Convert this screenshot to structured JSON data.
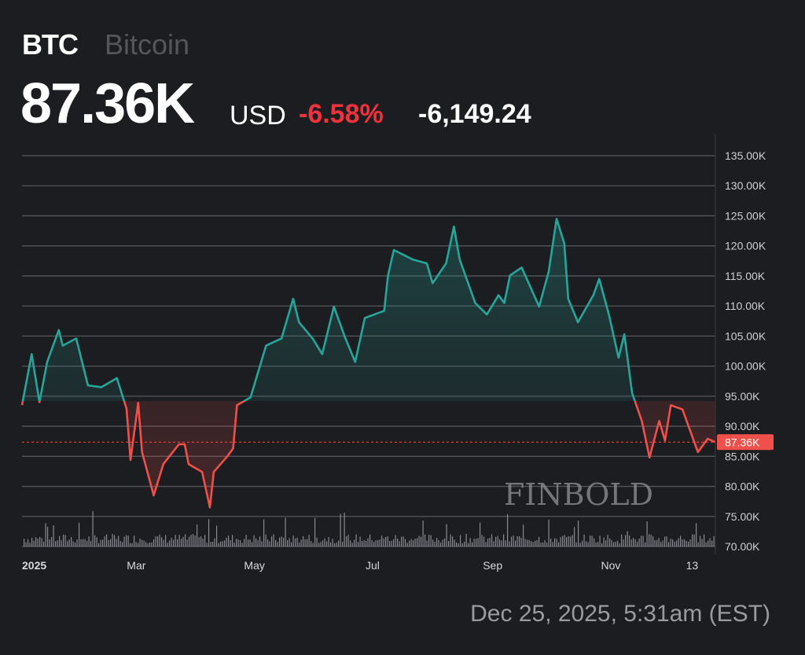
{
  "header": {
    "symbol": "BTC",
    "name": "Bitcoin",
    "price": "87.36K",
    "currency": "USD",
    "change_percent": "-6.58%",
    "change_abs": "-6,149.24"
  },
  "timestamp": "Dec 25, 2025, 5:31am (EST)",
  "watermark": "FINBOLD",
  "colors": {
    "up": "#26a69a",
    "down": "#f0504a",
    "background": "#1c1d21",
    "change_negative": "#f0323c"
  },
  "chart_data": {
    "type": "line",
    "ylabel": "",
    "xlabel": "",
    "ylim": [
      70,
      135
    ],
    "y_ticks": [
      "135.00K",
      "130.00K",
      "125.00K",
      "120.00K",
      "115.00K",
      "110.00K",
      "105.00K",
      "100.00K",
      "95.00K",
      "90.00K",
      "85.00K",
      "80.00K",
      "75.00K",
      "70.00K"
    ],
    "x_ticks": [
      {
        "label": "2025",
        "date": "2025-01-01"
      },
      {
        "label": "Mar",
        "date": "2025-03-01"
      },
      {
        "label": "May",
        "date": "2025-05-01"
      },
      {
        "label": "Jul",
        "date": "2025-07-01"
      },
      {
        "label": "Sep",
        "date": "2025-09-01"
      },
      {
        "label": "Nov",
        "date": "2025-11-01"
      },
      {
        "label": "13",
        "date": "2025-12-13"
      }
    ],
    "grid": true,
    "last_price_label": "87.36K",
    "last_price": 87.36,
    "baseline": 94.2,
    "volume_shown": true,
    "points": [
      [
        "2025-01-01",
        93.5
      ],
      [
        "2025-01-06",
        102
      ],
      [
        "2025-01-10",
        94
      ],
      [
        "2025-01-14",
        100.7
      ],
      [
        "2025-01-20",
        106
      ],
      [
        "2025-01-22",
        103.4
      ],
      [
        "2025-01-29",
        104.6
      ],
      [
        "2025-02-04",
        96.8
      ],
      [
        "2025-02-11",
        96.5
      ],
      [
        "2025-02-19",
        98
      ],
      [
        "2025-02-24",
        92.9
      ],
      [
        "2025-02-26",
        84.4
      ],
      [
        "2025-03-02",
        93.9
      ],
      [
        "2025-03-04",
        85.7
      ],
      [
        "2025-03-10",
        78.5
      ],
      [
        "2025-03-15",
        83.7
      ],
      [
        "2025-03-23",
        87
      ],
      [
        "2025-03-26",
        87
      ],
      [
        "2025-03-28",
        83.7
      ],
      [
        "2025-04-04",
        82.4
      ],
      [
        "2025-04-08",
        76.5
      ],
      [
        "2025-04-10",
        82.4
      ],
      [
        "2025-04-17",
        85
      ],
      [
        "2025-04-20",
        86.3
      ],
      [
        "2025-04-22",
        93.5
      ],
      [
        "2025-04-29",
        94.8
      ],
      [
        "2025-05-07",
        103.4
      ],
      [
        "2025-05-15",
        104.6
      ],
      [
        "2025-05-21",
        111.2
      ],
      [
        "2025-05-24",
        107.3
      ],
      [
        "2025-05-31",
        104.6
      ],
      [
        "2025-06-05",
        102
      ],
      [
        "2025-06-11",
        109.9
      ],
      [
        "2025-06-17",
        104.6
      ],
      [
        "2025-06-22",
        100.7
      ],
      [
        "2025-06-27",
        108
      ],
      [
        "2025-07-07",
        109.2
      ],
      [
        "2025-07-09",
        115.1
      ],
      [
        "2025-07-12",
        119.3
      ],
      [
        "2025-07-22",
        117.7
      ],
      [
        "2025-07-29",
        117.1
      ],
      [
        "2025-08-01",
        113.8
      ],
      [
        "2025-08-08",
        117.1
      ],
      [
        "2025-08-12",
        123.2
      ],
      [
        "2025-08-15",
        117.7
      ],
      [
        "2025-08-23",
        110.5
      ],
      [
        "2025-08-29",
        108.6
      ],
      [
        "2025-09-04",
        111.8
      ],
      [
        "2025-09-07",
        110.5
      ],
      [
        "2025-09-10",
        115.1
      ],
      [
        "2025-09-16",
        116.4
      ],
      [
        "2025-09-25",
        109.9
      ],
      [
        "2025-09-30",
        115.8
      ],
      [
        "2025-10-04",
        124.5
      ],
      [
        "2025-10-08",
        120.4
      ],
      [
        "2025-10-10",
        111.2
      ],
      [
        "2025-10-15",
        107.3
      ],
      [
        "2025-10-23",
        111.8
      ],
      [
        "2025-10-26",
        114.5
      ],
      [
        "2025-10-31",
        108.6
      ],
      [
        "2025-11-05",
        101.4
      ],
      [
        "2025-11-08",
        105.3
      ],
      [
        "2025-11-12",
        95.5
      ],
      [
        "2025-11-17",
        90.9
      ],
      [
        "2025-11-21",
        84.8
      ],
      [
        "2025-11-26",
        90.9
      ],
      [
        "2025-11-29",
        87.6
      ],
      [
        "2025-12-02",
        93.5
      ],
      [
        "2025-12-08",
        92.8
      ],
      [
        "2025-12-16",
        85.7
      ],
      [
        "2025-12-21",
        87.9
      ],
      [
        "2025-12-25",
        87.36
      ]
    ]
  }
}
